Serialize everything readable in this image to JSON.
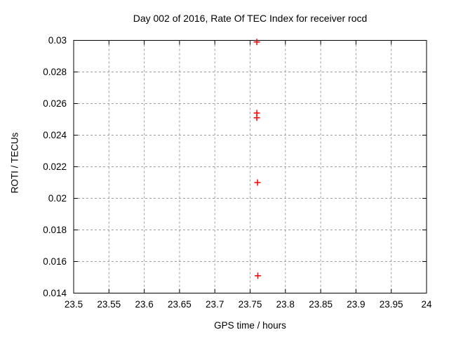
{
  "chart_data": {
    "type": "scatter",
    "title": "Day 002 of 2016, Rate Of TEC Index for receiver rocd",
    "xlabel": "GPS time / hours",
    "ylabel": "ROTI / TECUs",
    "xlim": [
      23.5,
      24
    ],
    "ylim": [
      0.014,
      0.03
    ],
    "grid": true,
    "legend_position": "none",
    "marker": "plus",
    "marker_color": "#ff0000",
    "grid_color": "#9e9e9e",
    "axis_color": "#000000",
    "x_ticks": [
      {
        "label": "23.5",
        "value": 23.5
      },
      {
        "label": "23.55",
        "value": 23.55
      },
      {
        "label": "23.6",
        "value": 23.6
      },
      {
        "label": "23.65",
        "value": 23.65
      },
      {
        "label": "23.7",
        "value": 23.7
      },
      {
        "label": "23.75",
        "value": 23.75
      },
      {
        "label": "23.8",
        "value": 23.8
      },
      {
        "label": "23.85",
        "value": 23.85
      },
      {
        "label": "23.9",
        "value": 23.9
      },
      {
        "label": "23.95",
        "value": 23.95
      },
      {
        "label": "24",
        "value": 24
      }
    ],
    "y_ticks": [
      {
        "label": "0.014",
        "value": 0.014
      },
      {
        "label": "0.016",
        "value": 0.016
      },
      {
        "label": "0.018",
        "value": 0.018
      },
      {
        "label": "0.02",
        "value": 0.02
      },
      {
        "label": "0.022",
        "value": 0.022
      },
      {
        "label": "0.024",
        "value": 0.024
      },
      {
        "label": "0.026",
        "value": 0.026
      },
      {
        "label": "0.028",
        "value": 0.028
      },
      {
        "label": "0.03",
        "value": 0.03
      }
    ],
    "series": [
      {
        "name": "ROTI",
        "points": [
          {
            "x": 23.7595,
            "y": 0.0299
          },
          {
            "x": 23.7595,
            "y": 0.0254
          },
          {
            "x": 23.7595,
            "y": 0.0251
          },
          {
            "x": 23.7605,
            "y": 0.021
          },
          {
            "x": 23.761,
            "y": 0.0151
          }
        ]
      }
    ]
  }
}
